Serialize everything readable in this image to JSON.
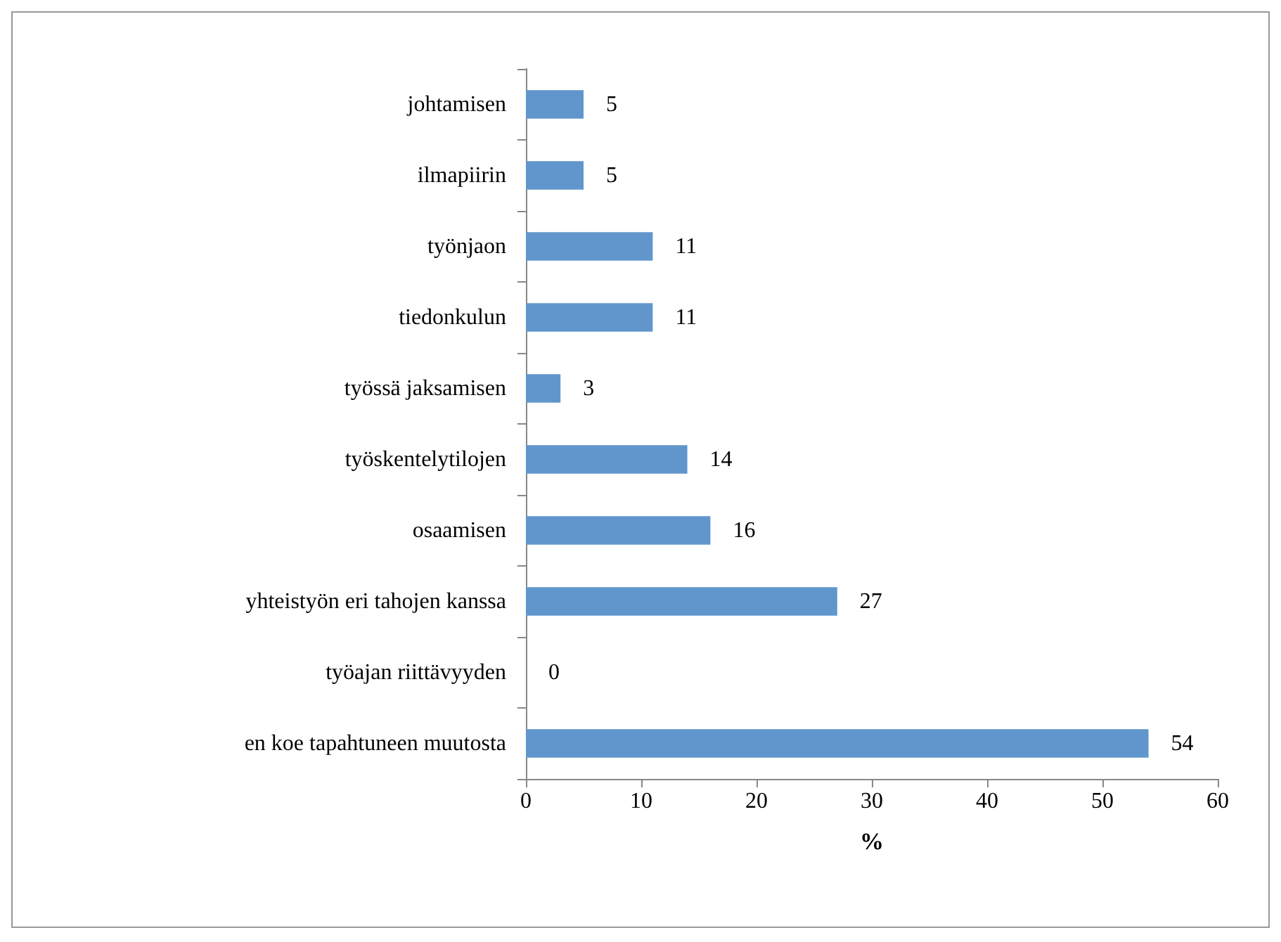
{
  "chart_data": {
    "type": "bar",
    "orientation": "horizontal",
    "xlabel": "%",
    "categories": [
      "johtamisen",
      "ilmapiirin",
      "työnjaon",
      "tiedonkulun",
      "työssä jaksamisen",
      "työskentelytilojen",
      "osaamisen",
      "yhteistyön eri tahojen kanssa",
      "työajan riittävyyden",
      "en koe tapahtuneen muutosta"
    ],
    "values": [
      5,
      5,
      11,
      11,
      3,
      14,
      16,
      27,
      0,
      54
    ],
    "color": "#6096cc",
    "xlim": [
      0,
      60
    ],
    "xticks": [
      0,
      10,
      20,
      30,
      40,
      50,
      60
    ],
    "data_labels": true,
    "grid": false
  }
}
